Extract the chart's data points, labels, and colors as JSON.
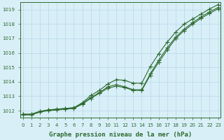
{
  "title": "Graphe pression niveau de la mer (hPa)",
  "x": [
    0,
    1,
    2,
    3,
    4,
    5,
    6,
    7,
    8,
    9,
    10,
    11,
    12,
    13,
    14,
    15,
    16,
    17,
    18,
    19,
    20,
    21,
    22,
    23
  ],
  "line_upper": [
    1011.75,
    1011.75,
    1011.95,
    1012.05,
    1012.1,
    1012.15,
    1012.2,
    1012.55,
    1013.05,
    1013.4,
    1013.85,
    1014.15,
    1014.1,
    1013.9,
    1013.9,
    1015.05,
    1015.95,
    1016.75,
    1017.45,
    1018.0,
    1018.35,
    1018.7,
    1019.05,
    1019.35
  ],
  "line_mid": [
    1011.75,
    1011.75,
    1011.95,
    1012.05,
    1012.1,
    1012.15,
    1012.2,
    1012.5,
    1012.9,
    1013.25,
    1013.65,
    1013.8,
    1013.65,
    1013.45,
    1013.45,
    1014.55,
    1015.5,
    1016.35,
    1017.1,
    1017.65,
    1018.1,
    1018.5,
    1018.85,
    1019.15
  ],
  "line_lower": [
    1011.7,
    1011.7,
    1011.9,
    1012.0,
    1012.05,
    1012.1,
    1012.15,
    1012.45,
    1012.85,
    1013.2,
    1013.55,
    1013.7,
    1013.6,
    1013.4,
    1013.4,
    1014.45,
    1015.35,
    1016.2,
    1017.0,
    1017.55,
    1018.0,
    1018.4,
    1018.75,
    1019.05
  ],
  "bg_color": "#d8eff8",
  "grid_color": "#b8d8e8",
  "line_color": "#2d6a2d",
  "marker": "+",
  "markersize": 4,
  "linewidth": 0.8,
  "ylim": [
    1011.5,
    1019.5
  ],
  "yticks": [
    1012,
    1013,
    1014,
    1015,
    1016,
    1017,
    1018,
    1019
  ],
  "xticks": [
    0,
    1,
    2,
    3,
    4,
    5,
    6,
    7,
    8,
    9,
    10,
    11,
    12,
    13,
    14,
    15,
    16,
    17,
    18,
    19,
    20,
    21,
    22,
    23
  ],
  "tick_fontsize": 5.0,
  "label_fontsize": 6.5
}
